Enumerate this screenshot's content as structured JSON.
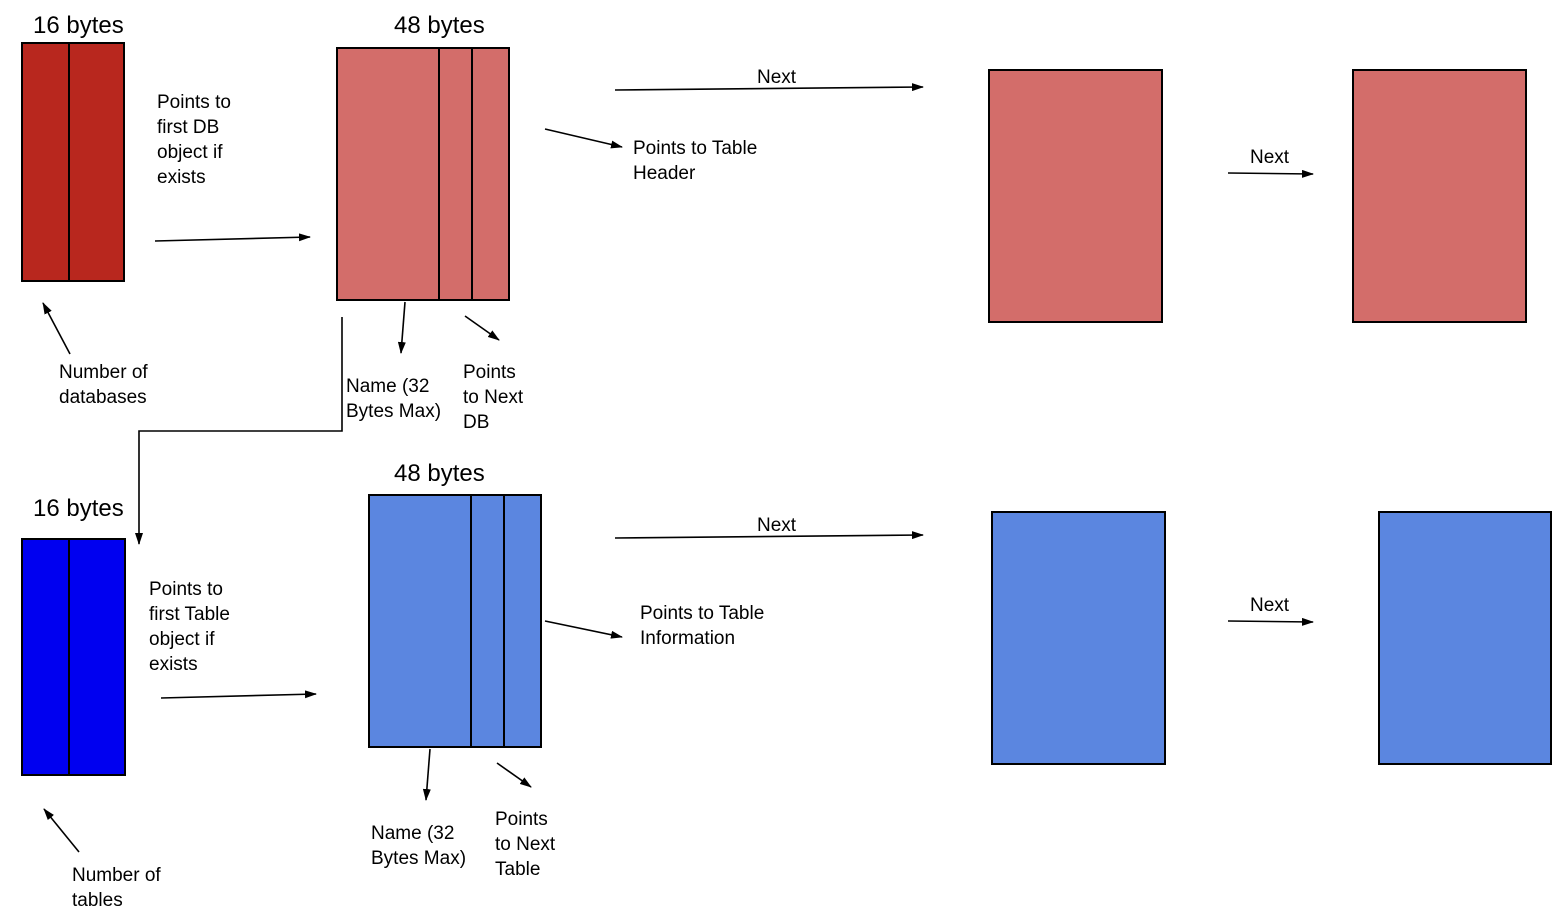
{
  "colors": {
    "db_header": "#B8271E",
    "db_object": "#D36D6A",
    "table_header": "#0000F0",
    "table_object": "#5B86E0",
    "stroke": "#000000"
  },
  "db_row": {
    "header_size": "16 bytes",
    "object_size": "48 bytes",
    "header_pointer_desc": [
      "Points to",
      "first DB",
      "object if",
      "exists"
    ],
    "count_desc": [
      "Number of",
      "databases"
    ],
    "name_desc": [
      "Name (32",
      "Bytes Max)"
    ],
    "next_desc": [
      "Points",
      "to Next",
      "DB"
    ],
    "child_desc": [
      "Points to Table",
      "Header"
    ],
    "next_label_1": "Next",
    "next_label_2": "Next"
  },
  "table_row": {
    "header_size": "16 bytes",
    "object_size": "48 bytes",
    "header_pointer_desc": [
      "Points to",
      "first Table",
      "object if",
      "exists"
    ],
    "count_desc": [
      "Number of",
      "tables"
    ],
    "name_desc": [
      "Name (32",
      "Bytes Max)"
    ],
    "next_desc": [
      "Points",
      "to Next",
      "Table"
    ],
    "child_desc": [
      "Points to Table",
      "Information"
    ],
    "next_label_1": "Next",
    "next_label_2": "Next"
  }
}
